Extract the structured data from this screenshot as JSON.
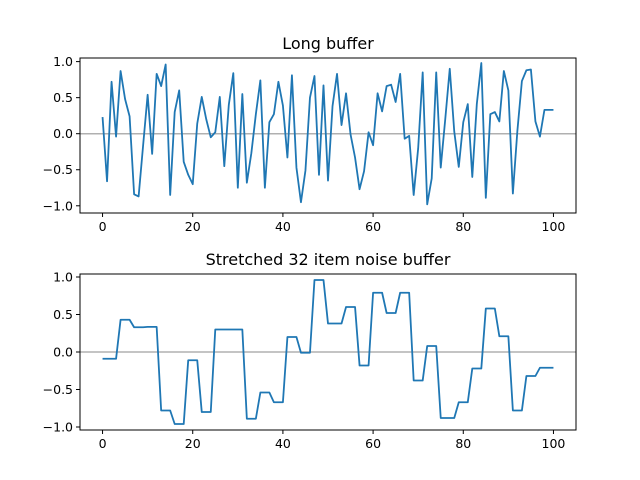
{
  "chart_data": [
    {
      "type": "line",
      "title": "Long buffer",
      "xlim": [
        -5,
        105
      ],
      "ylim": [
        -1.1,
        1.05
      ],
      "xticks": [
        0,
        20,
        40,
        60,
        80,
        100
      ],
      "yticks": [
        -1.0,
        -0.5,
        0.0,
        0.5,
        1.0
      ],
      "ytick_labels": [
        "−1.0",
        "−0.5",
        "0.0",
        "0.5",
        "1.0"
      ],
      "reference_line_y": 0,
      "color": "#1f77b4",
      "reference_color": "#b0b0b0",
      "x": [
        0,
        1,
        2,
        3,
        4,
        5,
        6,
        7,
        8,
        9,
        10,
        11,
        12,
        13,
        14,
        15,
        16,
        17,
        18,
        19,
        20,
        21,
        22,
        23,
        24,
        25,
        26,
        27,
        28,
        29,
        30,
        31,
        32,
        33,
        34,
        35,
        36,
        37,
        38,
        39,
        40,
        41,
        42,
        43,
        44,
        45,
        46,
        47,
        48,
        49,
        50,
        51,
        52,
        53,
        54,
        55,
        56,
        57,
        58,
        59,
        60,
        61,
        62,
        63,
        64,
        65,
        66,
        67,
        68,
        69,
        70,
        71,
        72,
        73,
        74,
        75,
        76,
        77,
        78,
        79,
        80,
        81,
        82,
        83,
        84,
        85,
        86,
        87,
        88,
        89,
        90,
        91,
        92,
        93,
        94,
        95,
        96,
        97,
        98,
        99,
        100
      ],
      "y": [
        0.23,
        -0.66,
        0.72,
        -0.04,
        0.87,
        0.48,
        0.24,
        -0.84,
        -0.87,
        -0.16,
        0.54,
        -0.28,
        0.83,
        0.66,
        0.96,
        -0.85,
        0.3,
        0.6,
        -0.39,
        -0.57,
        -0.7,
        0.14,
        0.51,
        0.2,
        -0.05,
        0.02,
        0.51,
        -0.45,
        0.4,
        0.84,
        -0.75,
        0.55,
        -0.68,
        -0.27,
        0.27,
        0.74,
        -0.75,
        0.16,
        0.27,
        0.72,
        0.39,
        -0.33,
        0.81,
        -0.47,
        -0.95,
        -0.51,
        0.5,
        0.8,
        -0.57,
        0.67,
        -0.65,
        0.38,
        0.83,
        0.12,
        0.56,
        -0.01,
        -0.33,
        -0.77,
        -0.52,
        0.02,
        -0.16,
        0.56,
        0.31,
        0.66,
        0.68,
        0.44,
        0.83,
        -0.07,
        -0.03,
        -0.85,
        -0.2,
        0.85,
        -0.98,
        -0.62,
        0.85,
        -0.47,
        0.2,
        0.9,
        0.03,
        -0.46,
        0.16,
        0.41,
        -0.6,
        0.41,
        0.98,
        -0.89,
        0.27,
        0.3,
        0.17,
        0.87,
        0.6,
        -0.83,
        0.04,
        0.73,
        0.88,
        0.89,
        0.17,
        -0.04,
        0.33,
        0.33,
        0.33
      ]
    },
    {
      "type": "line",
      "title": "Stretched 32 item noise buffer",
      "xlim": [
        -5,
        105
      ],
      "ylim": [
        -1.04,
        1.04
      ],
      "xticks": [
        0,
        20,
        40,
        60,
        80,
        100
      ],
      "yticks": [
        -1.0,
        -0.5,
        0.0,
        0.5,
        1.0
      ],
      "ytick_labels": [
        "−1.0",
        "−0.5",
        "0.0",
        "0.5",
        "1.0"
      ],
      "reference_line_y": 0,
      "color": "#1f77b4",
      "reference_color": "#b0b0b0",
      "x": [
        0,
        1,
        2,
        3,
        4,
        5,
        6,
        7,
        8,
        9,
        10,
        11,
        12,
        13,
        14,
        15,
        16,
        17,
        18,
        19,
        20,
        21,
        22,
        23,
        24,
        25,
        26,
        27,
        28,
        29,
        30,
        31,
        32,
        33,
        34,
        35,
        36,
        37,
        38,
        39,
        40,
        41,
        42,
        43,
        44,
        45,
        46,
        47,
        48,
        49,
        50,
        51,
        52,
        53,
        54,
        55,
        56,
        57,
        58,
        59,
        60,
        61,
        62,
        63,
        64,
        65,
        66,
        67,
        68,
        69,
        70,
        71,
        72,
        73,
        74,
        75,
        76,
        77,
        78,
        79,
        80,
        81,
        82,
        83,
        84,
        85,
        86,
        87,
        88,
        89,
        90,
        91,
        92,
        93,
        94,
        95,
        96,
        97,
        98,
        99,
        100
      ],
      "y": [
        -0.09,
        -0.09,
        -0.09,
        -0.09,
        0.43,
        0.43,
        0.43,
        0.33,
        0.33,
        0.33,
        0.335,
        0.335,
        0.335,
        -0.78,
        -0.78,
        -0.78,
        -0.96,
        -0.96,
        -0.96,
        -0.11,
        -0.11,
        -0.11,
        -0.8,
        -0.8,
        -0.8,
        0.3,
        0.3,
        0.3,
        0.3,
        0.3,
        0.3,
        0.3,
        -0.89,
        -0.89,
        -0.89,
        -0.54,
        -0.54,
        -0.54,
        -0.67,
        -0.67,
        -0.67,
        0.2,
        0.2,
        0.2,
        -0.01,
        -0.01,
        -0.01,
        0.96,
        0.96,
        0.96,
        0.38,
        0.38,
        0.38,
        0.38,
        0.6,
        0.6,
        0.6,
        -0.18,
        -0.18,
        -0.18,
        0.79,
        0.79,
        0.79,
        0.52,
        0.52,
        0.52,
        0.79,
        0.79,
        0.79,
        -0.38,
        -0.38,
        -0.38,
        0.08,
        0.08,
        0.08,
        -0.88,
        -0.88,
        -0.88,
        -0.88,
        -0.67,
        -0.67,
        -0.67,
        -0.22,
        -0.22,
        -0.22,
        0.58,
        0.58,
        0.58,
        0.21,
        0.21,
        0.21,
        -0.78,
        -0.78,
        -0.78,
        -0.32,
        -0.32,
        -0.32,
        -0.21,
        -0.21,
        -0.21,
        -0.21
      ]
    }
  ]
}
